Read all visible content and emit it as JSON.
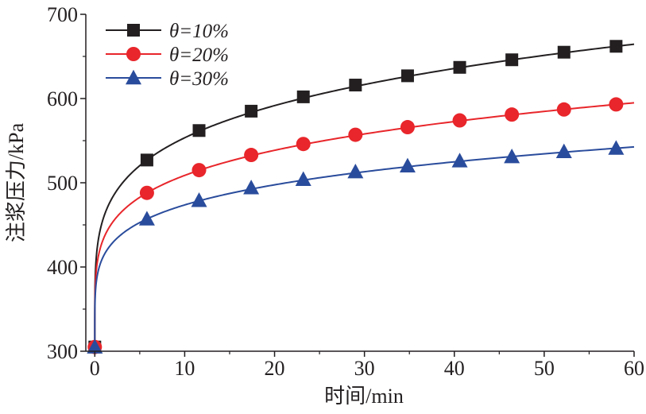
{
  "chart_data": {
    "type": "line",
    "xlabel": "时间/min",
    "ylabel": "注浆压力/kPa",
    "xlim": [
      -1,
      60
    ],
    "ylim": [
      300,
      700
    ],
    "xticks": [
      "0",
      "10",
      "20",
      "30",
      "40",
      "50",
      "60"
    ],
    "yticks": [
      "300",
      "400",
      "500",
      "600",
      "700"
    ],
    "legend_position": "top-left",
    "grid": false,
    "series": [
      {
        "name": "θ=10%",
        "color": "#231f20",
        "marker": "square",
        "x": [
          0,
          5.8,
          11.6,
          17.4,
          23.2,
          29.0,
          34.8,
          40.6,
          46.4,
          52.2,
          58.0
        ],
        "y": [
          305,
          527,
          562,
          585,
          602,
          616,
          627,
          637,
          646,
          655,
          662
        ]
      },
      {
        "name": "θ=20%",
        "color": "#e8262b",
        "marker": "circle",
        "x": [
          0,
          5.8,
          11.6,
          17.4,
          23.2,
          29.0,
          34.8,
          40.6,
          46.4,
          52.2,
          58.0
        ],
        "y": [
          305,
          488,
          515,
          533,
          546,
          557,
          566,
          574,
          581,
          587,
          593
        ]
      },
      {
        "name": "θ=30%",
        "color": "#2a4c9c",
        "marker": "triangle",
        "x": [
          0,
          5.8,
          11.6,
          17.4,
          23.2,
          29.0,
          34.8,
          40.6,
          46.4,
          52.2,
          58.0
        ],
        "y": [
          305,
          457,
          479,
          494,
          504,
          513,
          520,
          526,
          531,
          537,
          541
        ]
      }
    ]
  }
}
